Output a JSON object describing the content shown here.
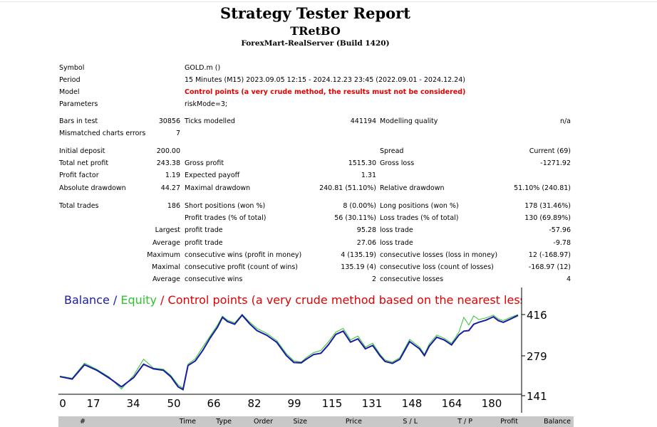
{
  "report": {
    "title": "Strategy Tester Report",
    "expert": "TRetBO",
    "server": "ForexMart-RealServer (Build 1420)"
  },
  "info": {
    "symbol_label": "Symbol",
    "symbol_value": "GOLD.m ()",
    "period_label": "Period",
    "period_value": "15 Minutes (M15) 2023.09.05 12:15 - 2024.12.23 23:45 (2022.09.01 - 2024.12.24)",
    "model_label": "Model",
    "model_value": "Control points (a very crude method, the results must not be considered)",
    "params_label": "Parameters",
    "params_value": "riskMode=3;"
  },
  "stats": {
    "bars_label": "Bars in test",
    "bars_value": "30856",
    "ticks_label": "Ticks modelled",
    "ticks_value": "441194",
    "quality_label": "Modelling quality",
    "quality_value": "n/a",
    "mismatch_label": "Mismatched charts errors",
    "mismatch_value": "7",
    "deposit_label": "Initial deposit",
    "deposit_value": "200.00",
    "spread_label": "Spread",
    "spread_value": "Current (69)",
    "netprofit_label": "Total net profit",
    "netprofit_value": "243.38",
    "grossprofit_label": "Gross profit",
    "grossprofit_value": "1515.30",
    "grossloss_label": "Gross loss",
    "grossloss_value": "-1271.92",
    "pf_label": "Profit factor",
    "pf_value": "1.19",
    "payoff_label": "Expected payoff",
    "payoff_value": "1.31",
    "absdd_label": "Absolute drawdown",
    "absdd_value": "44.27",
    "maxdd_label": "Maximal drawdown",
    "maxdd_value": "240.81 (51.10%)",
    "reldd_label": "Relative drawdown",
    "reldd_value": "51.10% (240.81)",
    "trades_label": "Total trades",
    "trades_value": "186",
    "short_label": "Short positions (won %)",
    "short_value": "8 (0.00%)",
    "long_label": "Long positions (won %)",
    "long_value": "178 (31.46%)",
    "profittrades_label": "Profit trades (% of total)",
    "profittrades_value": "56 (30.11%)",
    "losstrades_label": "Loss trades (% of total)",
    "losstrades_value": "130 (69.89%)",
    "largest_label": "Largest",
    "largest_profit_label": "profit trade",
    "largest_profit_value": "95.28",
    "largest_loss_label": "loss trade",
    "largest_loss_value": "-57.96",
    "average_label": "Average",
    "average_profit_label": "profit trade",
    "average_profit_value": "27.06",
    "average_loss_label": "loss trade",
    "average_loss_value": "-9.78",
    "maximum_label": "Maximum",
    "max_wins_label": "consecutive wins (profit in money)",
    "max_wins_value": "4 (135.19)",
    "max_losses_label": "consecutive losses (loss in money)",
    "max_losses_value": "12 (-168.97)",
    "maximal_label": "Maximal",
    "maximal_profit_label": "consecutive profit (count of wins)",
    "maximal_profit_value": "135.19 (4)",
    "maximal_loss_label": "consecutive loss (count of losses)",
    "maximal_loss_value": "-168.97 (12)",
    "avgcons_label": "Average",
    "avg_wins_label": "consecutive wins",
    "avg_wins_value": "2",
    "avg_losses_label": "consecutive losses",
    "avg_losses_value": "4"
  },
  "chart_legend": {
    "balance": "Balance",
    "sep1": " / ",
    "equity": "Equity",
    "sep2": " / ",
    "control": "Control points (a very crude method based on the nearest less timef"
  },
  "colors": {
    "balance": "#1a1aa6",
    "equity": "#2ec42e",
    "control": "#e00000",
    "table_header": "#c8c8c8"
  },
  "chart_data": {
    "type": "line",
    "xlim": [
      0,
      186
    ],
    "ylim": [
      141,
      430
    ],
    "x_ticks": [
      "0",
      "17",
      "34",
      "50",
      "66",
      "82",
      "99",
      "115",
      "131",
      "148",
      "164",
      "180"
    ],
    "y_ticks": [
      "416",
      "279",
      "141"
    ],
    "series": [
      {
        "name": "Balance",
        "x": [
          0,
          5,
          10,
          15,
          20,
          25,
          30,
          34,
          38,
          42,
          45,
          48,
          50,
          52,
          55,
          58,
          61,
          64,
          66,
          68,
          71,
          74,
          77,
          80,
          84,
          88,
          92,
          95,
          98,
          100,
          103,
          106,
          109,
          112,
          115,
          118,
          121,
          124,
          127,
          130,
          132,
          135,
          138,
          142,
          146,
          148,
          150,
          153,
          156,
          159,
          162,
          164,
          166,
          168,
          170,
          173,
          176,
          178,
          180,
          183,
          186
        ],
        "values": [
          205,
          196,
          248,
          228,
          200,
          168,
          202,
          250,
          233,
          228,
          205,
          168,
          158,
          245,
          262,
          300,
          345,
          384,
          420,
          405,
          395,
          428,
          397,
          372,
          355,
          330,
          281,
          256,
          255,
          268,
          285,
          290,
          320,
          358,
          370,
          330,
          342,
          306,
          318,
          280,
          260,
          253,
          268,
          332,
          306,
          281,
          316,
          348,
          338,
          320,
          356,
          370,
          372,
          395,
          402,
          410,
          422,
          408,
          402,
          414,
          427
        ]
      },
      {
        "name": "Equity",
        "x": [
          0,
          5,
          10,
          15,
          20,
          25,
          30,
          34,
          38,
          42,
          45,
          48,
          50,
          52,
          55,
          58,
          61,
          64,
          66,
          68,
          71,
          74,
          77,
          80,
          84,
          88,
          92,
          95,
          98,
          100,
          103,
          106,
          109,
          112,
          115,
          118,
          121,
          124,
          127,
          130,
          132,
          135,
          138,
          142,
          146,
          148,
          150,
          153,
          156,
          159,
          162,
          164,
          166,
          168,
          170,
          173,
          176,
          178,
          180,
          183,
          186
        ],
        "values": [
          207,
          199,
          254,
          231,
          204,
          160,
          210,
          268,
          236,
          232,
          210,
          175,
          163,
          250,
          270,
          312,
          352,
          392,
          424,
          410,
          400,
          431,
          403,
          380,
          362,
          336,
          288,
          262,
          258,
          274,
          292,
          300,
          331,
          366,
          380,
          338,
          352,
          312,
          326,
          286,
          265,
          258,
          274,
          340,
          312,
          286,
          324,
          356,
          344,
          326,
          366,
          420,
          392,
          425,
          412,
          418,
          428,
          414,
          408,
          420,
          430
        ]
      }
    ]
  },
  "trade_table": {
    "headers": [
      "#",
      "Time",
      "Type",
      "Order",
      "Size",
      "Price",
      "S / L",
      "T / P",
      "Profit",
      "Balance"
    ]
  }
}
